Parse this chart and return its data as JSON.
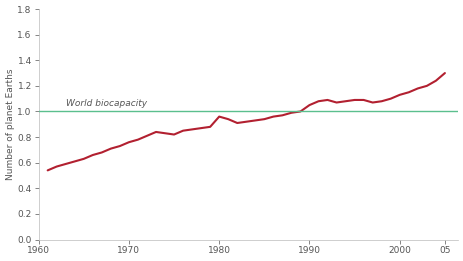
{
  "ylabel": "Number of planet Earths",
  "biocapacity_label": "World biocapacity",
  "biocapacity_value": 1.0,
  "xlim": [
    1960,
    2006.5
  ],
  "ylim": [
    0,
    1.8
  ],
  "yticks": [
    0,
    0.2,
    0.4,
    0.6,
    0.8,
    1.0,
    1.2,
    1.4,
    1.6,
    1.8
  ],
  "xtick_positions": [
    1960,
    1970,
    1980,
    1990,
    2000,
    2005
  ],
  "xtick_labels": [
    "1960",
    "1970",
    "1980",
    "1990",
    "2000",
    "05"
  ],
  "line_color": "#b22030",
  "biocapacity_color": "#5bbf8e",
  "background_color": "#ffffff",
  "label_color": "#555555",
  "years": [
    1961,
    1962,
    1963,
    1964,
    1965,
    1966,
    1967,
    1968,
    1969,
    1970,
    1971,
    1972,
    1973,
    1974,
    1975,
    1976,
    1977,
    1978,
    1979,
    1980,
    1981,
    1982,
    1983,
    1984,
    1985,
    1986,
    1987,
    1988,
    1989,
    1990,
    1991,
    1992,
    1993,
    1994,
    1995,
    1996,
    1997,
    1998,
    1999,
    2000,
    2001,
    2002,
    2003,
    2004,
    2005
  ],
  "footprint": [
    0.54,
    0.57,
    0.59,
    0.61,
    0.63,
    0.66,
    0.68,
    0.71,
    0.73,
    0.76,
    0.78,
    0.81,
    0.84,
    0.83,
    0.82,
    0.85,
    0.86,
    0.87,
    0.88,
    0.96,
    0.94,
    0.91,
    0.92,
    0.93,
    0.94,
    0.96,
    0.97,
    0.99,
    1.0,
    1.05,
    1.08,
    1.09,
    1.07,
    1.08,
    1.09,
    1.09,
    1.07,
    1.08,
    1.1,
    1.13,
    1.15,
    1.18,
    1.2,
    1.24,
    1.3
  ]
}
